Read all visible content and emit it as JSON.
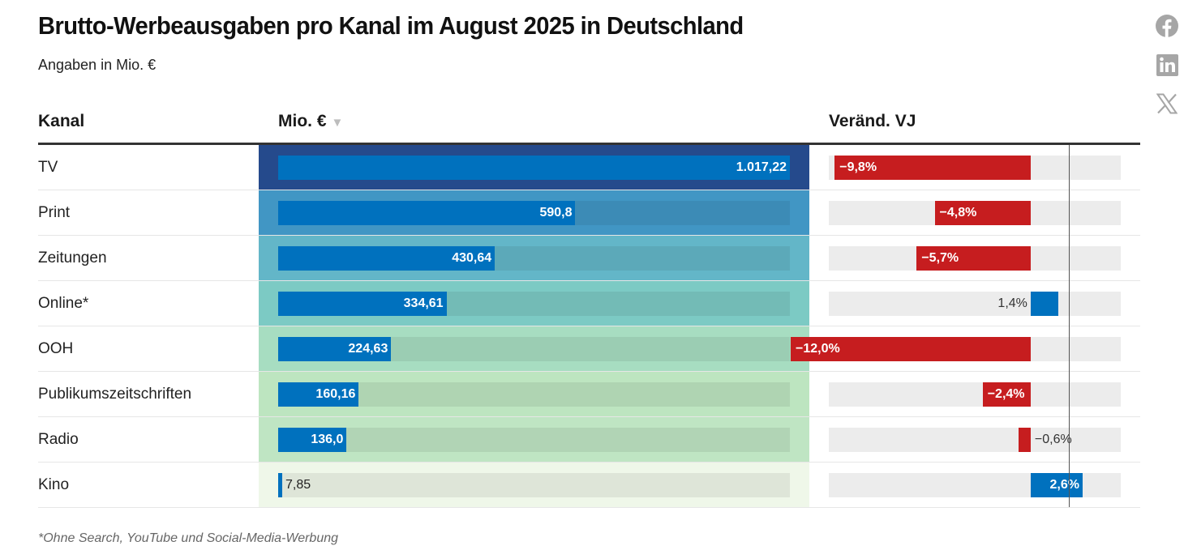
{
  "header": {
    "title": "Brutto-Werbeausgaben pro Kanal im August 2025 in Deutschland",
    "subtitle": "Angaben in Mio. €"
  },
  "share": [
    {
      "name": "facebook-icon",
      "label": "Facebook"
    },
    {
      "name": "linkedin-icon",
      "label": "LinkedIn"
    },
    {
      "name": "x-icon",
      "label": "X"
    }
  ],
  "columns": {
    "kanal": "Kanal",
    "mio": "Mio. €",
    "sort_indicator": "▼",
    "change": "Veränd. VJ"
  },
  "colors": {
    "bar": "#0071be",
    "negative": "#c61d1f",
    "positive": "#0071be",
    "header_rule": "#333333",
    "heat": [
      "#254a8c",
      "#4196c4",
      "#63b6c8",
      "#7ccac4",
      "#a7ddc1",
      "#bde5c0",
      "#bfe5c3",
      "#eff7e9"
    ]
  },
  "chart_data": {
    "type": "table",
    "title": "Brutto-Werbeausgaben pro Kanal im August 2025 in Deutschland",
    "subtitle": "Angaben in Mio. €",
    "columns": [
      "Kanal",
      "Mio. €",
      "Veränd. VJ"
    ],
    "sorted_by": "Mio. € (descending)",
    "value_range": [
      0,
      1017.22
    ],
    "change_range": [
      -12.0,
      2.6
    ],
    "rows": [
      {
        "kanal": "TV",
        "value": 1017.22,
        "value_label": "1.017,22",
        "change": -9.8,
        "change_label": "−9,8%"
      },
      {
        "kanal": "Print",
        "value": 590.8,
        "value_label": "590,8",
        "change": -4.8,
        "change_label": "−4,8%"
      },
      {
        "kanal": "Zeitungen",
        "value": 430.64,
        "value_label": "430,64",
        "change": -5.7,
        "change_label": "−5,7%"
      },
      {
        "kanal": "Online*",
        "value": 334.61,
        "value_label": "334,61",
        "change": 1.4,
        "change_label": "1,4%"
      },
      {
        "kanal": "OOH",
        "value": 224.63,
        "value_label": "224,63",
        "change": -12.0,
        "change_label": "−12,0%"
      },
      {
        "kanal": "Publikumszeitschriften",
        "value": 160.16,
        "value_label": "160,16",
        "change": -2.4,
        "change_label": "−2,4%"
      },
      {
        "kanal": "Radio",
        "value": 136.0,
        "value_label": "136,0",
        "change": -0.6,
        "change_label": "−0,6%"
      },
      {
        "kanal": "Kino",
        "value": 7.85,
        "value_label": "7,85",
        "change": 2.6,
        "change_label": "2,6%"
      }
    ],
    "footnote": "*Ohne Search, YouTube und Social-Media-Werbung"
  }
}
